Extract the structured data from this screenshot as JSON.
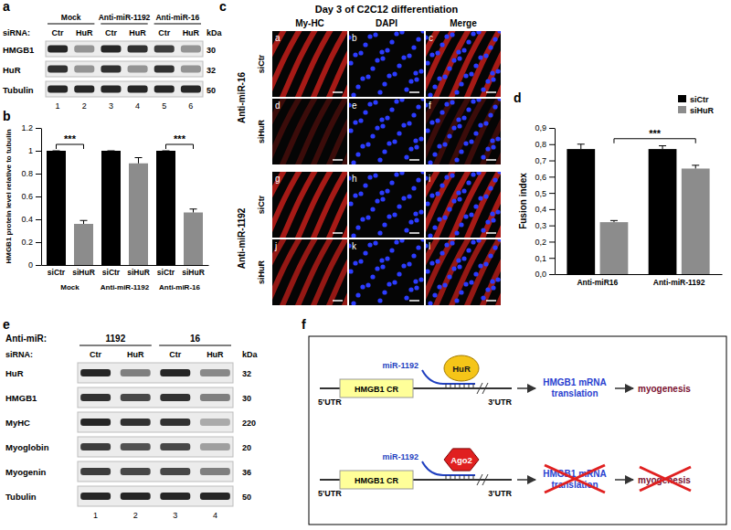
{
  "panel_labels": [
    "a",
    "b",
    "c",
    "d",
    "e",
    "f"
  ],
  "blot_a": {
    "groups": [
      "Mock",
      "Anti-miR-1192",
      "Anti-miR-16"
    ],
    "sirna_label": "siRNA:",
    "lanes": [
      "Ctr",
      "HuR",
      "Ctr",
      "HuR",
      "Ctr",
      "HuR"
    ],
    "lane_numbers": [
      1,
      2,
      3,
      4,
      5,
      6
    ],
    "kda_label": "kDa",
    "rows": [
      {
        "name": "HMGB1",
        "kda": 30,
        "bands": [
          0.9,
          0.4,
          0.9,
          0.85,
          0.8,
          0.4
        ]
      },
      {
        "name": "HuR",
        "kda": 32,
        "bands": [
          0.85,
          0.4,
          0.85,
          0.4,
          0.85,
          0.4
        ]
      },
      {
        "name": "Tubulin",
        "kda": 50,
        "bands": [
          0.9,
          0.9,
          0.9,
          0.9,
          0.9,
          0.9
        ]
      }
    ]
  },
  "chart_data": [
    {
      "type": "bar",
      "ylabel": "HMGB1 protein level relative to tubulin",
      "categories": [
        "siCtr",
        "siHuR",
        "siCtr",
        "siHuR",
        "siCtr",
        "siHuR"
      ],
      "groups": [
        "Mock",
        "Anti-miR-1192",
        "Anti-miR-16"
      ],
      "values": [
        1,
        0.36,
        1,
        0.89,
        1,
        0.46
      ],
      "errors": [
        0,
        0.03,
        0,
        0.05,
        0,
        0.03
      ],
      "colors": [
        "#000000",
        "#8c8c8c",
        "#000000",
        "#8c8c8c",
        "#000000",
        "#8c8c8c"
      ],
      "ylim": [
        0,
        1.2
      ],
      "yticks": [
        0,
        0.2,
        0.4,
        0.6,
        0.8,
        1,
        1.2
      ],
      "annotations": [
        {
          "text": "***",
          "x": [
            0,
            1
          ]
        },
        {
          "text": "***",
          "x": [
            4,
            5
          ]
        }
      ]
    },
    {
      "type": "bar",
      "ylabel": "Fusion index",
      "categories": [
        "Anti-miR16",
        "Anti-miR-1192"
      ],
      "series": [
        {
          "name": "siCtr",
          "color": "#000000",
          "values": [
            0.77,
            0.77
          ],
          "errors": [
            0.03,
            0.02
          ]
        },
        {
          "name": "siHuR",
          "color": "#8c8c8c",
          "values": [
            0.32,
            0.65
          ],
          "errors": [
            0.01,
            0.02
          ]
        }
      ],
      "ylim": [
        0,
        0.9
      ],
      "yticks": [
        {
          "value": 0,
          "label": "0,0"
        },
        {
          "value": 0.1,
          "label": "0,1"
        },
        {
          "value": 0.2,
          "label": "0,2"
        },
        {
          "value": 0.3,
          "label": "0,3"
        },
        {
          "value": 0.4,
          "label": "0,4"
        },
        {
          "value": 0.5,
          "label": "0,5"
        },
        {
          "value": 0.6,
          "label": "0,6"
        },
        {
          "value": 0.7,
          "label": "0,7"
        },
        {
          "value": 0.8,
          "label": "0,8"
        },
        {
          "value": 0.9,
          "label": "0,9"
        }
      ],
      "legend": "top-right",
      "annotations": [
        {
          "text": "***",
          "series": 1,
          "x": [
            0,
            1
          ]
        }
      ]
    }
  ],
  "microscopy": {
    "title": "Day 3 of C2C12 differentiation",
    "columns": [
      "My-HC",
      "DAPI",
      "Merge"
    ],
    "groups": [
      {
        "name": "Anti-miR-16",
        "rows": [
          {
            "name": "siCtr",
            "panels": [
              "a",
              "b",
              "c"
            ],
            "signal": 0.9
          },
          {
            "name": "siHuR",
            "panels": [
              "d",
              "e",
              "f"
            ],
            "signal": 0.3
          }
        ]
      },
      {
        "name": "Anti-miR-1192",
        "rows": [
          {
            "name": "siCtr",
            "panels": [
              "g",
              "h",
              "i"
            ],
            "signal": 0.9
          },
          {
            "name": "siHuR",
            "panels": [
              "j",
              "k",
              "l"
            ],
            "signal": 0.8
          }
        ]
      }
    ]
  },
  "blot_e": {
    "anti_mir_label": "Anti-miR:",
    "groups": [
      "1192",
      "16"
    ],
    "sirna_label": "siRNA:",
    "lanes": [
      "Ctr",
      "HuR",
      "Ctr",
      "HuR"
    ],
    "lane_numbers": [
      1,
      2,
      3,
      4
    ],
    "kda_label": "kDa",
    "rows": [
      {
        "name": "HuR",
        "kda": 32,
        "bands": [
          0.9,
          0.5,
          0.9,
          0.45
        ]
      },
      {
        "name": "HMGB1",
        "kda": 30,
        "bands": [
          0.85,
          0.75,
          0.85,
          0.5
        ]
      },
      {
        "name": "MyHC",
        "kda": 220,
        "bands": [
          0.9,
          0.85,
          0.85,
          0.3
        ]
      },
      {
        "name": "Myoglobin",
        "kda": 20,
        "bands": [
          0.8,
          0.7,
          0.75,
          0.35
        ]
      },
      {
        "name": "Myogenin",
        "kda": 36,
        "bands": [
          0.8,
          0.75,
          0.75,
          0.5
        ]
      },
      {
        "name": "Tubulin",
        "kda": 50,
        "bands": [
          0.9,
          0.9,
          0.9,
          0.9
        ]
      }
    ]
  },
  "diagram": {
    "rows": [
      {
        "five_utr": "5'UTR",
        "cr": "HMGB1 CR",
        "three_utr": "3'UTR",
        "mirna": "miR-1192",
        "protein": "HuR",
        "marker": "ellipse",
        "color": "#f5c518",
        "result": [
          "HMGB1 mRNA",
          "translation"
        ],
        "outcome": "myogenesis",
        "blocked": false
      },
      {
        "five_utr": "5'UTR",
        "cr": "HMGB1 CR",
        "three_utr": "3'UTR",
        "mirna": "miR-1192",
        "protein": "Ago2",
        "marker": "hexagon",
        "color": "#e02020",
        "result": [
          "HMGB1 mRNA",
          "translation"
        ],
        "outcome": "myogenesis",
        "blocked": true
      }
    ]
  }
}
